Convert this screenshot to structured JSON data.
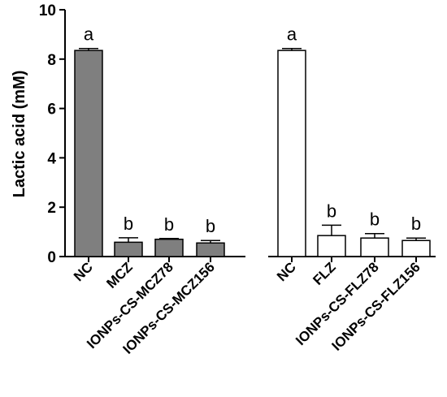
{
  "chart_data": {
    "type": "bar",
    "title": "",
    "ylabel": "Lactic acid (mM)",
    "xlabel": "",
    "ylim": [
      0,
      10
    ],
    "yticks": [
      0,
      2,
      4,
      6,
      8,
      10
    ],
    "grid": false,
    "groups": [
      {
        "color": "#7f7f7f",
        "categories": [
          "NC",
          "MCZ",
          "IONPs-CS-MCZ78",
          "IONPs-CS-MCZ156"
        ],
        "values": [
          8.35,
          0.58,
          0.7,
          0.55
        ],
        "errors": [
          0.08,
          0.18,
          0.03,
          0.1
        ],
        "significance": [
          "a",
          "b",
          "b",
          "b"
        ]
      },
      {
        "color": "#ffffff",
        "categories": [
          "NC",
          "FLZ",
          "IONPs-CS-FLZ78",
          "IONPs-CS-FLZ156"
        ],
        "values": [
          8.35,
          0.85,
          0.75,
          0.65
        ],
        "errors": [
          0.08,
          0.42,
          0.18,
          0.1
        ],
        "significance": [
          "a",
          "b",
          "b",
          "b"
        ]
      }
    ]
  }
}
